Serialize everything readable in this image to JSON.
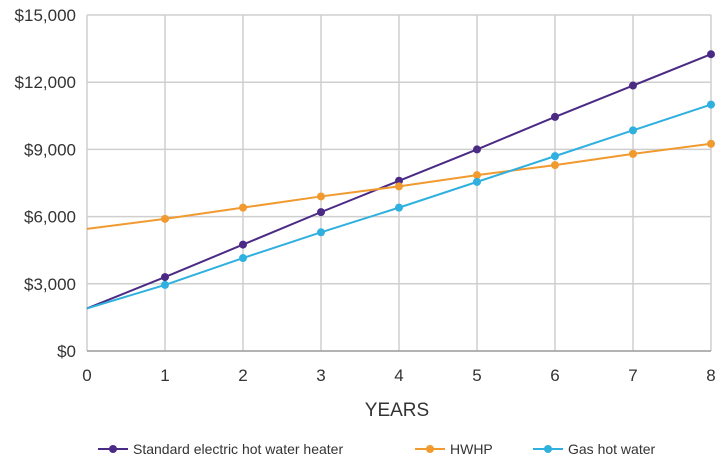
{
  "chart_data": {
    "type": "line",
    "title": "",
    "xlabel": "YEARS",
    "ylabel": "",
    "x": [
      0,
      1,
      2,
      3,
      4,
      5,
      6,
      7,
      8
    ],
    "x_tick_labels": [
      "0",
      "1",
      "2",
      "3",
      "4",
      "5",
      "6",
      "7",
      "8"
    ],
    "xlim": [
      0,
      8
    ],
    "ylim": [
      0,
      15000
    ],
    "y_ticks": [
      0,
      3000,
      6000,
      9000,
      12000,
      15000
    ],
    "y_tick_labels": [
      "$0",
      "$3,000",
      "$6,000",
      "$9,000",
      "$12,000",
      "$15,000"
    ],
    "grid": true,
    "legend_position": "bottom",
    "series": [
      {
        "name": "Standard electric hot water heater",
        "color": "#4b2a86",
        "values": [
          1900,
          3300,
          4750,
          6200,
          7600,
          9000,
          10450,
          11850,
          13250
        ]
      },
      {
        "name": "HWHP",
        "color": "#f09a2f",
        "values": [
          5450,
          5900,
          6400,
          6900,
          7350,
          7850,
          8300,
          8800,
          9250
        ]
      },
      {
        "name": "Gas hot water",
        "color": "#2fb0df",
        "values": [
          1900,
          2950,
          4150,
          5300,
          6400,
          7550,
          8700,
          9850,
          11000
        ]
      }
    ]
  }
}
